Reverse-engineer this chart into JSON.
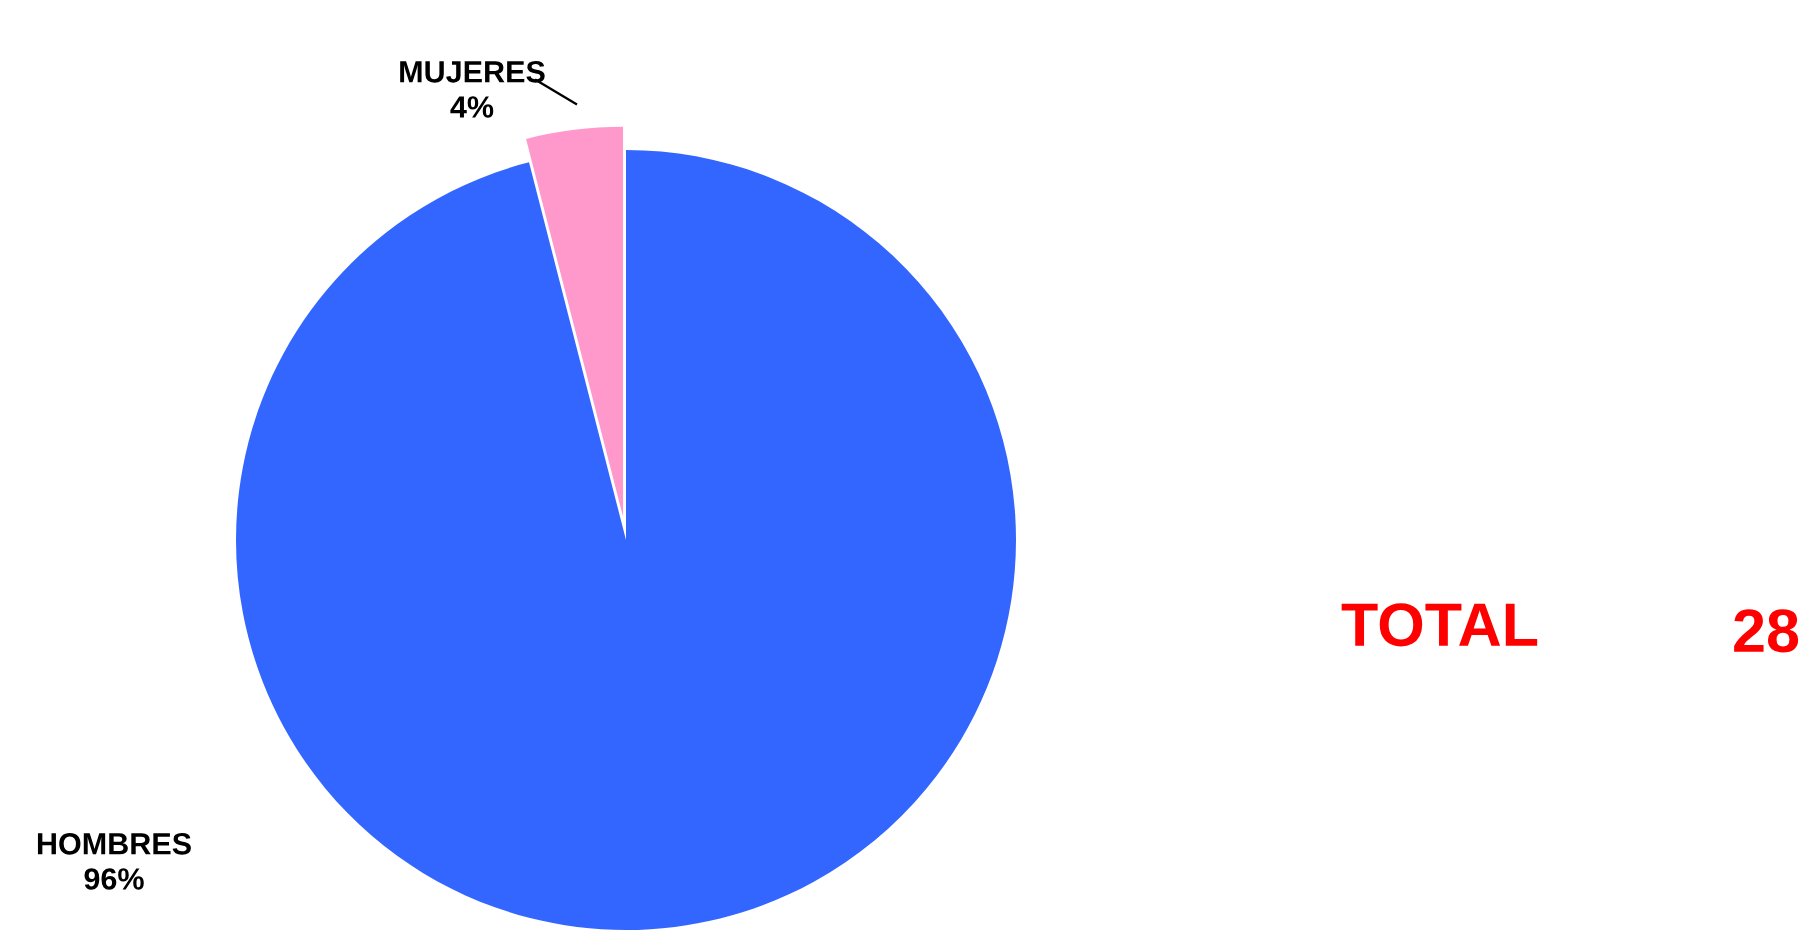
{
  "chart_data": {
    "type": "pie",
    "categories": [
      "MUJERES",
      "HOMBRES"
    ],
    "values": [
      4,
      96
    ],
    "colors": [
      "#ff99cc",
      "#3366ff"
    ],
    "value_labels": [
      "4%",
      "96%"
    ],
    "annotations": [
      "TOTAL",
      "28"
    ],
    "legend": false
  }
}
